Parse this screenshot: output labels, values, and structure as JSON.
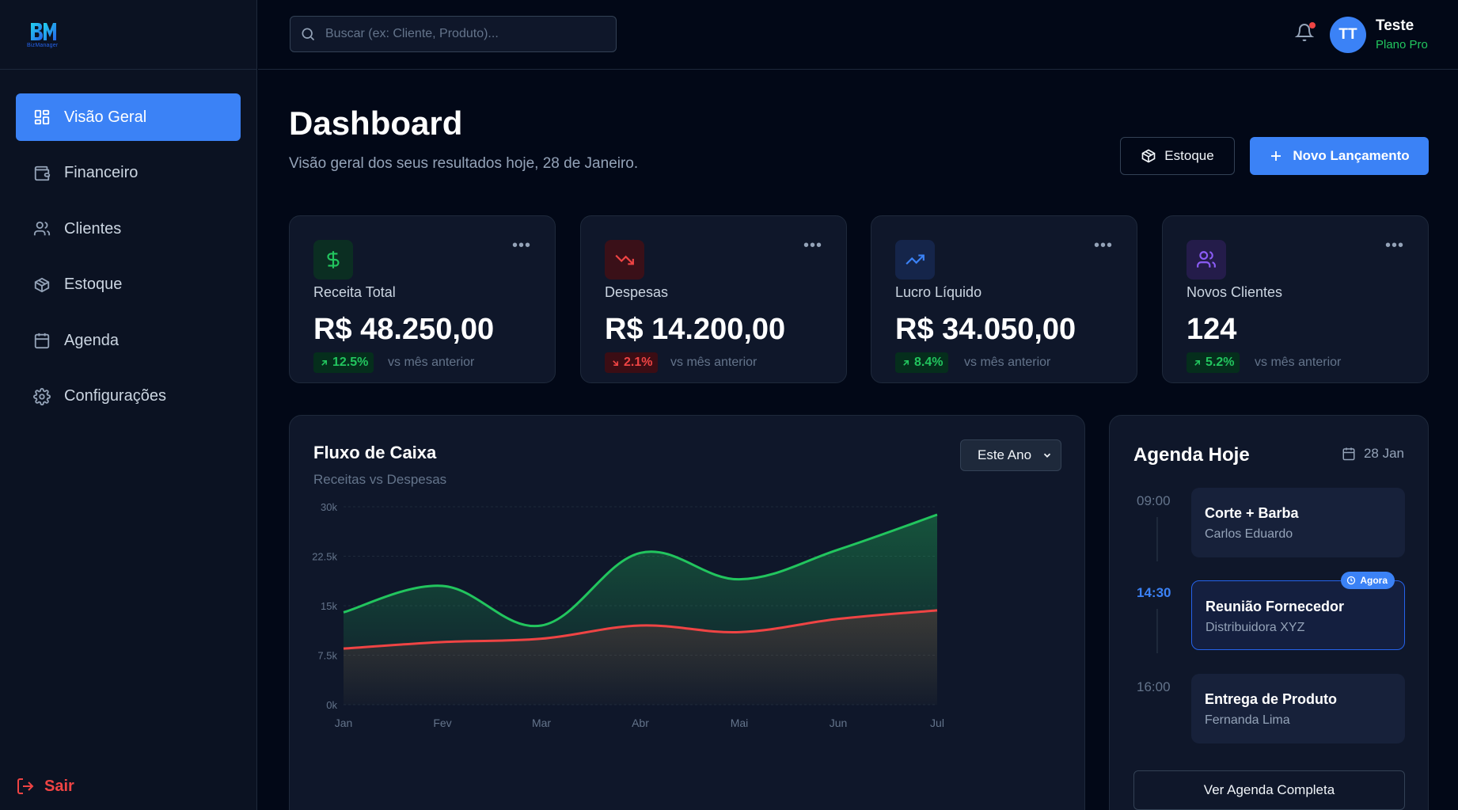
{
  "brand": {
    "logo_text": "BM",
    "logo_sub": "BizManager"
  },
  "sidebar": {
    "items": [
      {
        "label": "Visão Geral",
        "icon": "layout-grid-icon",
        "active": true
      },
      {
        "label": "Financeiro",
        "icon": "wallet-icon"
      },
      {
        "label": "Clientes",
        "icon": "users-icon"
      },
      {
        "label": "Estoque",
        "icon": "package-icon"
      },
      {
        "label": "Agenda",
        "icon": "calendar-icon"
      },
      {
        "label": "Configurações",
        "icon": "gear-icon"
      }
    ],
    "logout_label": "Sair"
  },
  "topbar": {
    "search_placeholder": "Buscar (ex: Cliente, Produto)...",
    "avatar_initials": "TT",
    "user_name": "Teste",
    "user_plan": "Plano Pro"
  },
  "header": {
    "title": "Dashboard",
    "subtitle": "Visão geral dos seus resultados hoje, 28 de Janeiro.",
    "stock_button": "Estoque",
    "new_button": "Novo Lançamento"
  },
  "kpis": [
    {
      "label": "Receita Total",
      "value": "R$ 48.250,00",
      "change": "12.5%",
      "direction": "up",
      "note": "vs mês anterior",
      "icon": "dollar-icon",
      "accent": "#22c55e"
    },
    {
      "label": "Despesas",
      "value": "R$ 14.200,00",
      "change": "2.1%",
      "direction": "down",
      "note": "vs mês anterior",
      "icon": "trending-down-icon",
      "accent": "#ef4444"
    },
    {
      "label": "Lucro Líquido",
      "value": "R$ 34.050,00",
      "change": "8.4%",
      "direction": "up",
      "note": "vs mês anterior",
      "icon": "trending-up-icon",
      "accent": "#3b82f6"
    },
    {
      "label": "Novos Clientes",
      "value": "124",
      "change": "5.2%",
      "direction": "up",
      "note": "vs mês anterior",
      "icon": "users-icon",
      "accent": "#8b5cf6"
    }
  ],
  "cashflow": {
    "title": "Fluxo de Caixa",
    "subtitle": "Receitas vs Despesas",
    "range_selected": "Este Ano"
  },
  "chart_data": {
    "type": "area",
    "categories": [
      "Jan",
      "Fev",
      "Mar",
      "Abr",
      "Mai",
      "Jun",
      "Jul"
    ],
    "series": [
      {
        "name": "Receitas",
        "values": [
          14000,
          18000,
          12000,
          23000,
          19000,
          23500,
          28800
        ],
        "color": "#22c55e"
      },
      {
        "name": "Despesas",
        "values": [
          8500,
          9500,
          10000,
          12000,
          11000,
          13000,
          14300
        ],
        "color": "#ef4444"
      }
    ],
    "y_ticks": [
      "0k",
      "7.5k",
      "15k",
      "22.5k",
      "30k"
    ],
    "ylim": [
      0,
      30000
    ],
    "grid": true
  },
  "agenda": {
    "title": "Agenda Hoje",
    "date": "28 Jan",
    "events": [
      {
        "time": "09:00",
        "title": "Corte + Barba",
        "subtitle": "Carlos Eduardo",
        "current": false
      },
      {
        "time": "14:30",
        "title": "Reunião Fornecedor",
        "subtitle": "Distribuidora XYZ",
        "current": true,
        "badge": "Agora"
      },
      {
        "time": "16:00",
        "title": "Entrega de Produto",
        "subtitle": "Fernanda Lima",
        "current": false
      }
    ],
    "full_button": "Ver Agenda Completa"
  },
  "colors": {
    "accent": "#3b82f6",
    "background": "#020817",
    "card": "#0f172a",
    "positive": "#22c55e",
    "negative": "#ef4444"
  }
}
